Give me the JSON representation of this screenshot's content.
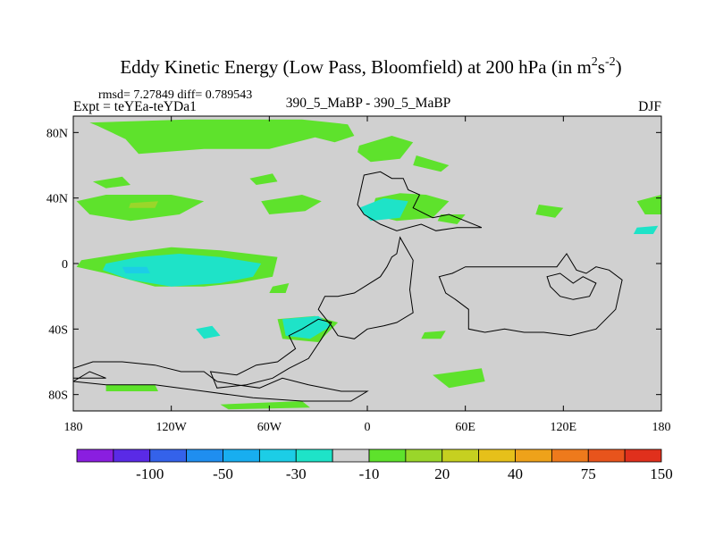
{
  "chart_data": {
    "type": "heatmap",
    "title": "Eddy Kinetic Energy (Low Pass, Bloomfield) at 200 hPa (in m",
    "title_units": {
      "sup1": "2",
      "s": "s",
      "sup2": "-2",
      "close": ")"
    },
    "stats_line": "rmsd= 7.27849 diff= 0.789543",
    "expt_line": "Expt = teYEa-teYDa1",
    "center_label": "390_5_MaBP - 390_5_MaBP",
    "season": "DJF",
    "x_ticks": [
      "180",
      "120W",
      "60W",
      "0",
      "60E",
      "120E",
      "180"
    ],
    "x_tick_values": [
      -180,
      -120,
      -60,
      0,
      60,
      120,
      180
    ],
    "y_ticks": [
      "80N",
      "40N",
      "0",
      "40S",
      "80S"
    ],
    "y_tick_values": [
      80,
      40,
      0,
      -40,
      -80
    ],
    "xlim": [
      -180,
      180
    ],
    "ylim": [
      -90,
      90
    ],
    "colorbar": {
      "colors": [
        "#8a1ee0",
        "#5a2ae6",
        "#3462ea",
        "#1f8ef0",
        "#18aef0",
        "#1ccde6",
        "#1ee3c8",
        "#d0d0d0",
        "#5ee22c",
        "#9ad62a",
        "#c6d020",
        "#e6c01a",
        "#eea21a",
        "#ee7a1c",
        "#e8541c",
        "#e0301c"
      ],
      "labels": [
        "-100",
        "-50",
        "-30",
        "-10",
        "20",
        "40",
        "75",
        "150"
      ]
    },
    "field_regions": [
      {
        "name": "arctic-band",
        "level": 10,
        "points": [
          [
            -170,
            86
          ],
          [
            -110,
            88
          ],
          [
            -40,
            88
          ],
          [
            -12,
            85
          ],
          [
            -8,
            78
          ],
          [
            -20,
            74
          ],
          [
            -32,
            77
          ],
          [
            -60,
            70
          ],
          [
            -100,
            70
          ],
          [
            -140,
            67
          ],
          [
            -148,
            76
          ],
          [
            -165,
            84
          ]
        ]
      },
      {
        "name": "arctic-east",
        "level": 10,
        "points": [
          [
            -5,
            72
          ],
          [
            15,
            78
          ],
          [
            28,
            74
          ],
          [
            20,
            64
          ],
          [
            2,
            62
          ],
          [
            -6,
            68
          ]
        ]
      },
      {
        "name": "arctic-east-tip",
        "level": 10,
        "points": [
          [
            30,
            66
          ],
          [
            50,
            60
          ],
          [
            45,
            56
          ],
          [
            28,
            60
          ]
        ]
      },
      {
        "name": "nh-west-blob-1",
        "level": 10,
        "points": [
          [
            -168,
            50
          ],
          [
            -150,
            53
          ],
          [
            -145,
            48
          ],
          [
            -160,
            46
          ]
        ]
      },
      {
        "name": "nh-west-blob-2",
        "level": 10,
        "points": [
          [
            -72,
            52
          ],
          [
            -58,
            55
          ],
          [
            -55,
            50
          ],
          [
            -68,
            48
          ]
        ]
      },
      {
        "name": "nh-west-blob-3",
        "level": 10,
        "points": [
          [
            -65,
            38
          ],
          [
            -40,
            42
          ],
          [
            -28,
            38
          ],
          [
            -38,
            32
          ],
          [
            -60,
            30
          ]
        ]
      },
      {
        "name": "nh-pacific-band",
        "level": 10,
        "points": [
          [
            -178,
            38
          ],
          [
            -160,
            42
          ],
          [
            -120,
            42
          ],
          [
            -100,
            38
          ],
          [
            -115,
            30
          ],
          [
            -145,
            26
          ],
          [
            -170,
            30
          ]
        ]
      },
      {
        "name": "nh-pacific-core",
        "level": 20,
        "points": [
          [
            -145,
            37
          ],
          [
            -128,
            38
          ],
          [
            -130,
            34
          ],
          [
            -146,
            34
          ]
        ]
      },
      {
        "name": "nh-atlantic-blob",
        "level": 10,
        "points": [
          [
            5,
            40
          ],
          [
            20,
            43
          ],
          [
            36,
            42
          ],
          [
            50,
            38
          ],
          [
            40,
            28
          ],
          [
            18,
            26
          ],
          [
            2,
            30
          ]
        ]
      },
      {
        "name": "nh-atlantic-core",
        "level": -10,
        "points": [
          [
            -5,
            34
          ],
          [
            10,
            40
          ],
          [
            25,
            38
          ],
          [
            20,
            28
          ],
          [
            2,
            26
          ]
        ]
      },
      {
        "name": "nh-mideast-dot",
        "level": 10,
        "points": [
          [
            45,
            30
          ],
          [
            60,
            30
          ],
          [
            55,
            24
          ],
          [
            43,
            26
          ]
        ]
      },
      {
        "name": "nh-east-dot",
        "level": 10,
        "points": [
          [
            105,
            36
          ],
          [
            120,
            34
          ],
          [
            115,
            28
          ],
          [
            103,
            30
          ]
        ]
      },
      {
        "name": "nh-pacific-east",
        "level": 10,
        "points": [
          [
            165,
            38
          ],
          [
            180,
            42
          ],
          [
            180,
            30
          ],
          [
            170,
            30
          ]
        ]
      },
      {
        "name": "nh-far-east",
        "level": -10,
        "points": [
          [
            165,
            22
          ],
          [
            178,
            23
          ],
          [
            175,
            18
          ],
          [
            163,
            18
          ]
        ]
      },
      {
        "name": "tropics-pacific-outer",
        "level": 10,
        "points": [
          [
            -175,
            2
          ],
          [
            -150,
            6
          ],
          [
            -120,
            10
          ],
          [
            -90,
            8
          ],
          [
            -55,
            4
          ],
          [
            -58,
            -8
          ],
          [
            -80,
            -12
          ],
          [
            -100,
            -14
          ],
          [
            -130,
            -14
          ],
          [
            -160,
            -6
          ],
          [
            -178,
            -2
          ]
        ]
      },
      {
        "name": "tropics-pacific-inner",
        "level": -10,
        "points": [
          [
            -160,
            0
          ],
          [
            -140,
            4
          ],
          [
            -115,
            6
          ],
          [
            -90,
            4
          ],
          [
            -65,
            0
          ],
          [
            -70,
            -8
          ],
          [
            -90,
            -12
          ],
          [
            -120,
            -14
          ],
          [
            -145,
            -10
          ],
          [
            -162,
            -4
          ]
        ]
      },
      {
        "name": "tropics-pacific-core",
        "level": -30,
        "points": [
          [
            -150,
            -2
          ],
          [
            -135,
            -2
          ],
          [
            -133,
            -6
          ],
          [
            -148,
            -6
          ]
        ]
      },
      {
        "name": "tropics-east-dot",
        "level": 10,
        "points": [
          [
            -58,
            -14
          ],
          [
            -48,
            -12
          ],
          [
            -50,
            -18
          ],
          [
            -60,
            -18
          ]
        ]
      },
      {
        "name": "sa-outer",
        "level": 10,
        "points": [
          [
            -55,
            -34
          ],
          [
            -32,
            -32
          ],
          [
            -18,
            -36
          ],
          [
            -30,
            -48
          ],
          [
            -52,
            -46
          ]
        ]
      },
      {
        "name": "sa-inner",
        "level": -10,
        "points": [
          [
            -52,
            -34
          ],
          [
            -30,
            -32
          ],
          [
            -22,
            -38
          ],
          [
            -35,
            -46
          ],
          [
            -50,
            -44
          ]
        ]
      },
      {
        "name": "sa-west",
        "level": -10,
        "points": [
          [
            -105,
            -40
          ],
          [
            -95,
            -38
          ],
          [
            -90,
            -44
          ],
          [
            -100,
            -46
          ]
        ]
      },
      {
        "name": "sa-east-dot",
        "level": 10,
        "points": [
          [
            35,
            -42
          ],
          [
            48,
            -41
          ],
          [
            45,
            -46
          ],
          [
            33,
            -46
          ]
        ]
      },
      {
        "name": "so-east-blob",
        "level": 10,
        "points": [
          [
            40,
            -68
          ],
          [
            70,
            -64
          ],
          [
            72,
            -72
          ],
          [
            50,
            -76
          ]
        ]
      },
      {
        "name": "so-west-strip",
        "level": 10,
        "points": [
          [
            -160,
            -74
          ],
          [
            -130,
            -74
          ],
          [
            -128,
            -78
          ],
          [
            -160,
            -78
          ]
        ]
      },
      {
        "name": "so-west-strip-2",
        "level": 10,
        "points": [
          [
            -90,
            -86
          ],
          [
            -40,
            -84
          ],
          [
            -35,
            -88
          ],
          [
            -85,
            -89
          ]
        ]
      }
    ],
    "continent_outlines": [
      {
        "name": "europe-north",
        "points": [
          [
            -2,
            54
          ],
          [
            8,
            56
          ],
          [
            15,
            52
          ],
          [
            22,
            52
          ],
          [
            25,
            45
          ],
          [
            32,
            42
          ],
          [
            28,
            34
          ],
          [
            40,
            28
          ],
          [
            50,
            30
          ],
          [
            60,
            26
          ],
          [
            70,
            22
          ],
          [
            55,
            22
          ],
          [
            42,
            20
          ],
          [
            33,
            24
          ],
          [
            18,
            20
          ],
          [
            8,
            24
          ],
          [
            -2,
            30
          ],
          [
            -6,
            36
          ]
        ]
      },
      {
        "name": "africa",
        "points": [
          [
            -26,
            -20
          ],
          [
            -18,
            -20
          ],
          [
            -8,
            -18
          ],
          [
            8,
            -8
          ],
          [
            12,
            -2
          ],
          [
            15,
            4
          ],
          [
            18,
            6
          ],
          [
            20,
            16
          ],
          [
            28,
            2
          ],
          [
            26,
            -16
          ],
          [
            28,
            -30
          ],
          [
            18,
            -36
          ],
          [
            10,
            -38
          ],
          [
            0,
            -40
          ],
          [
            -8,
            -46
          ],
          [
            -18,
            -44
          ],
          [
            -22,
            -38
          ],
          [
            -30,
            -28
          ]
        ]
      },
      {
        "name": "south-america",
        "points": [
          [
            -96,
            -66
          ],
          [
            -80,
            -68
          ],
          [
            -68,
            -62
          ],
          [
            -55,
            -60
          ],
          [
            -44,
            -52
          ],
          [
            -48,
            -44
          ],
          [
            -40,
            -40
          ],
          [
            -30,
            -34
          ],
          [
            -22,
            -36
          ],
          [
            -28,
            -46
          ],
          [
            -36,
            -58
          ],
          [
            -48,
            -64
          ],
          [
            -58,
            -70
          ],
          [
            -74,
            -74
          ],
          [
            -92,
            -76
          ]
        ]
      },
      {
        "name": "australia",
        "points": [
          [
            60,
            -2
          ],
          [
            72,
            -2
          ],
          [
            84,
            -2
          ],
          [
            104,
            -2
          ],
          [
            116,
            -2
          ],
          [
            122,
            6
          ],
          [
            128,
            -4
          ],
          [
            134,
            -6
          ],
          [
            140,
            -2
          ],
          [
            148,
            -4
          ],
          [
            156,
            -10
          ],
          [
            152,
            -28
          ],
          [
            140,
            -40
          ],
          [
            124,
            -44
          ],
          [
            108,
            -42
          ],
          [
            96,
            -42
          ],
          [
            84,
            -40
          ],
          [
            72,
            -42
          ],
          [
            62,
            -40
          ],
          [
            62,
            -28
          ],
          [
            54,
            -22
          ],
          [
            48,
            -18
          ],
          [
            44,
            -8
          ],
          [
            52,
            -6
          ]
        ]
      },
      {
        "name": "australia-inner",
        "points": [
          [
            110,
            -8
          ],
          [
            118,
            -6
          ],
          [
            126,
            -12
          ],
          [
            132,
            -8
          ],
          [
            140,
            -12
          ],
          [
            136,
            -20
          ],
          [
            126,
            -22
          ],
          [
            118,
            -20
          ],
          [
            112,
            -14
          ]
        ]
      },
      {
        "name": "antarctica",
        "points": [
          [
            -180,
            -64
          ],
          [
            -168,
            -60
          ],
          [
            -150,
            -60
          ],
          [
            -130,
            -62
          ],
          [
            -114,
            -66
          ],
          [
            -100,
            -66
          ],
          [
            -92,
            -72
          ],
          [
            -80,
            -74
          ],
          [
            -66,
            -76
          ],
          [
            -52,
            -70
          ],
          [
            -36,
            -74
          ],
          [
            -16,
            -78
          ],
          [
            0,
            -78
          ],
          [
            -10,
            -84
          ],
          [
            -40,
            -84
          ],
          [
            -70,
            -82
          ],
          [
            -100,
            -78
          ],
          [
            -130,
            -74
          ],
          [
            -160,
            -74
          ],
          [
            -180,
            -72
          ]
        ]
      },
      {
        "name": "antarctica-west",
        "points": [
          [
            -180,
            -72
          ],
          [
            -170,
            -66
          ],
          [
            -160,
            -70
          ],
          [
            -180,
            -70
          ]
        ]
      }
    ]
  }
}
